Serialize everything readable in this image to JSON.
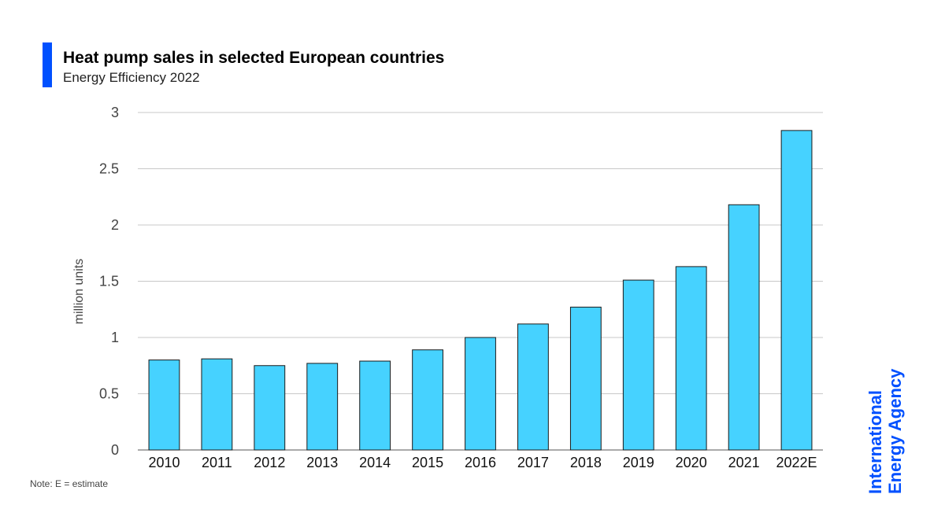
{
  "header": {
    "title": "Heat pump sales in selected European countries",
    "subtitle": "Energy Efficiency 2022"
  },
  "footer": {
    "note": "Note: E = estimate"
  },
  "logo": {
    "line1": "International",
    "line2": "Energy Agency"
  },
  "colors": {
    "accent": "#0050FF",
    "bar_fill": "#46D2FF",
    "bar_stroke": "#1a1a1a",
    "grid": "#c8c8c8",
    "axis_text": "#444444",
    "logo": "#0050FF"
  },
  "chart_data": {
    "type": "bar",
    "title": "Heat pump sales in selected European countries",
    "subtitle": "Energy Efficiency 2022",
    "xlabel": "",
    "ylabel": "million units",
    "categories": [
      "2010",
      "2011",
      "2012",
      "2013",
      "2014",
      "2015",
      "2016",
      "2017",
      "2018",
      "2019",
      "2020",
      "2021",
      "2022E"
    ],
    "values": [
      0.8,
      0.81,
      0.75,
      0.77,
      0.79,
      0.89,
      1.0,
      1.12,
      1.27,
      1.51,
      1.63,
      2.18,
      2.84
    ],
    "ylim": [
      0,
      3
    ],
    "yticks": [
      0,
      0.5,
      1,
      1.5,
      2,
      2.5,
      3
    ],
    "ytick_labels": [
      "0",
      "0.5",
      "1",
      "1.5",
      "2",
      "2.5",
      "3"
    ],
    "grid": true,
    "legend": "none"
  }
}
